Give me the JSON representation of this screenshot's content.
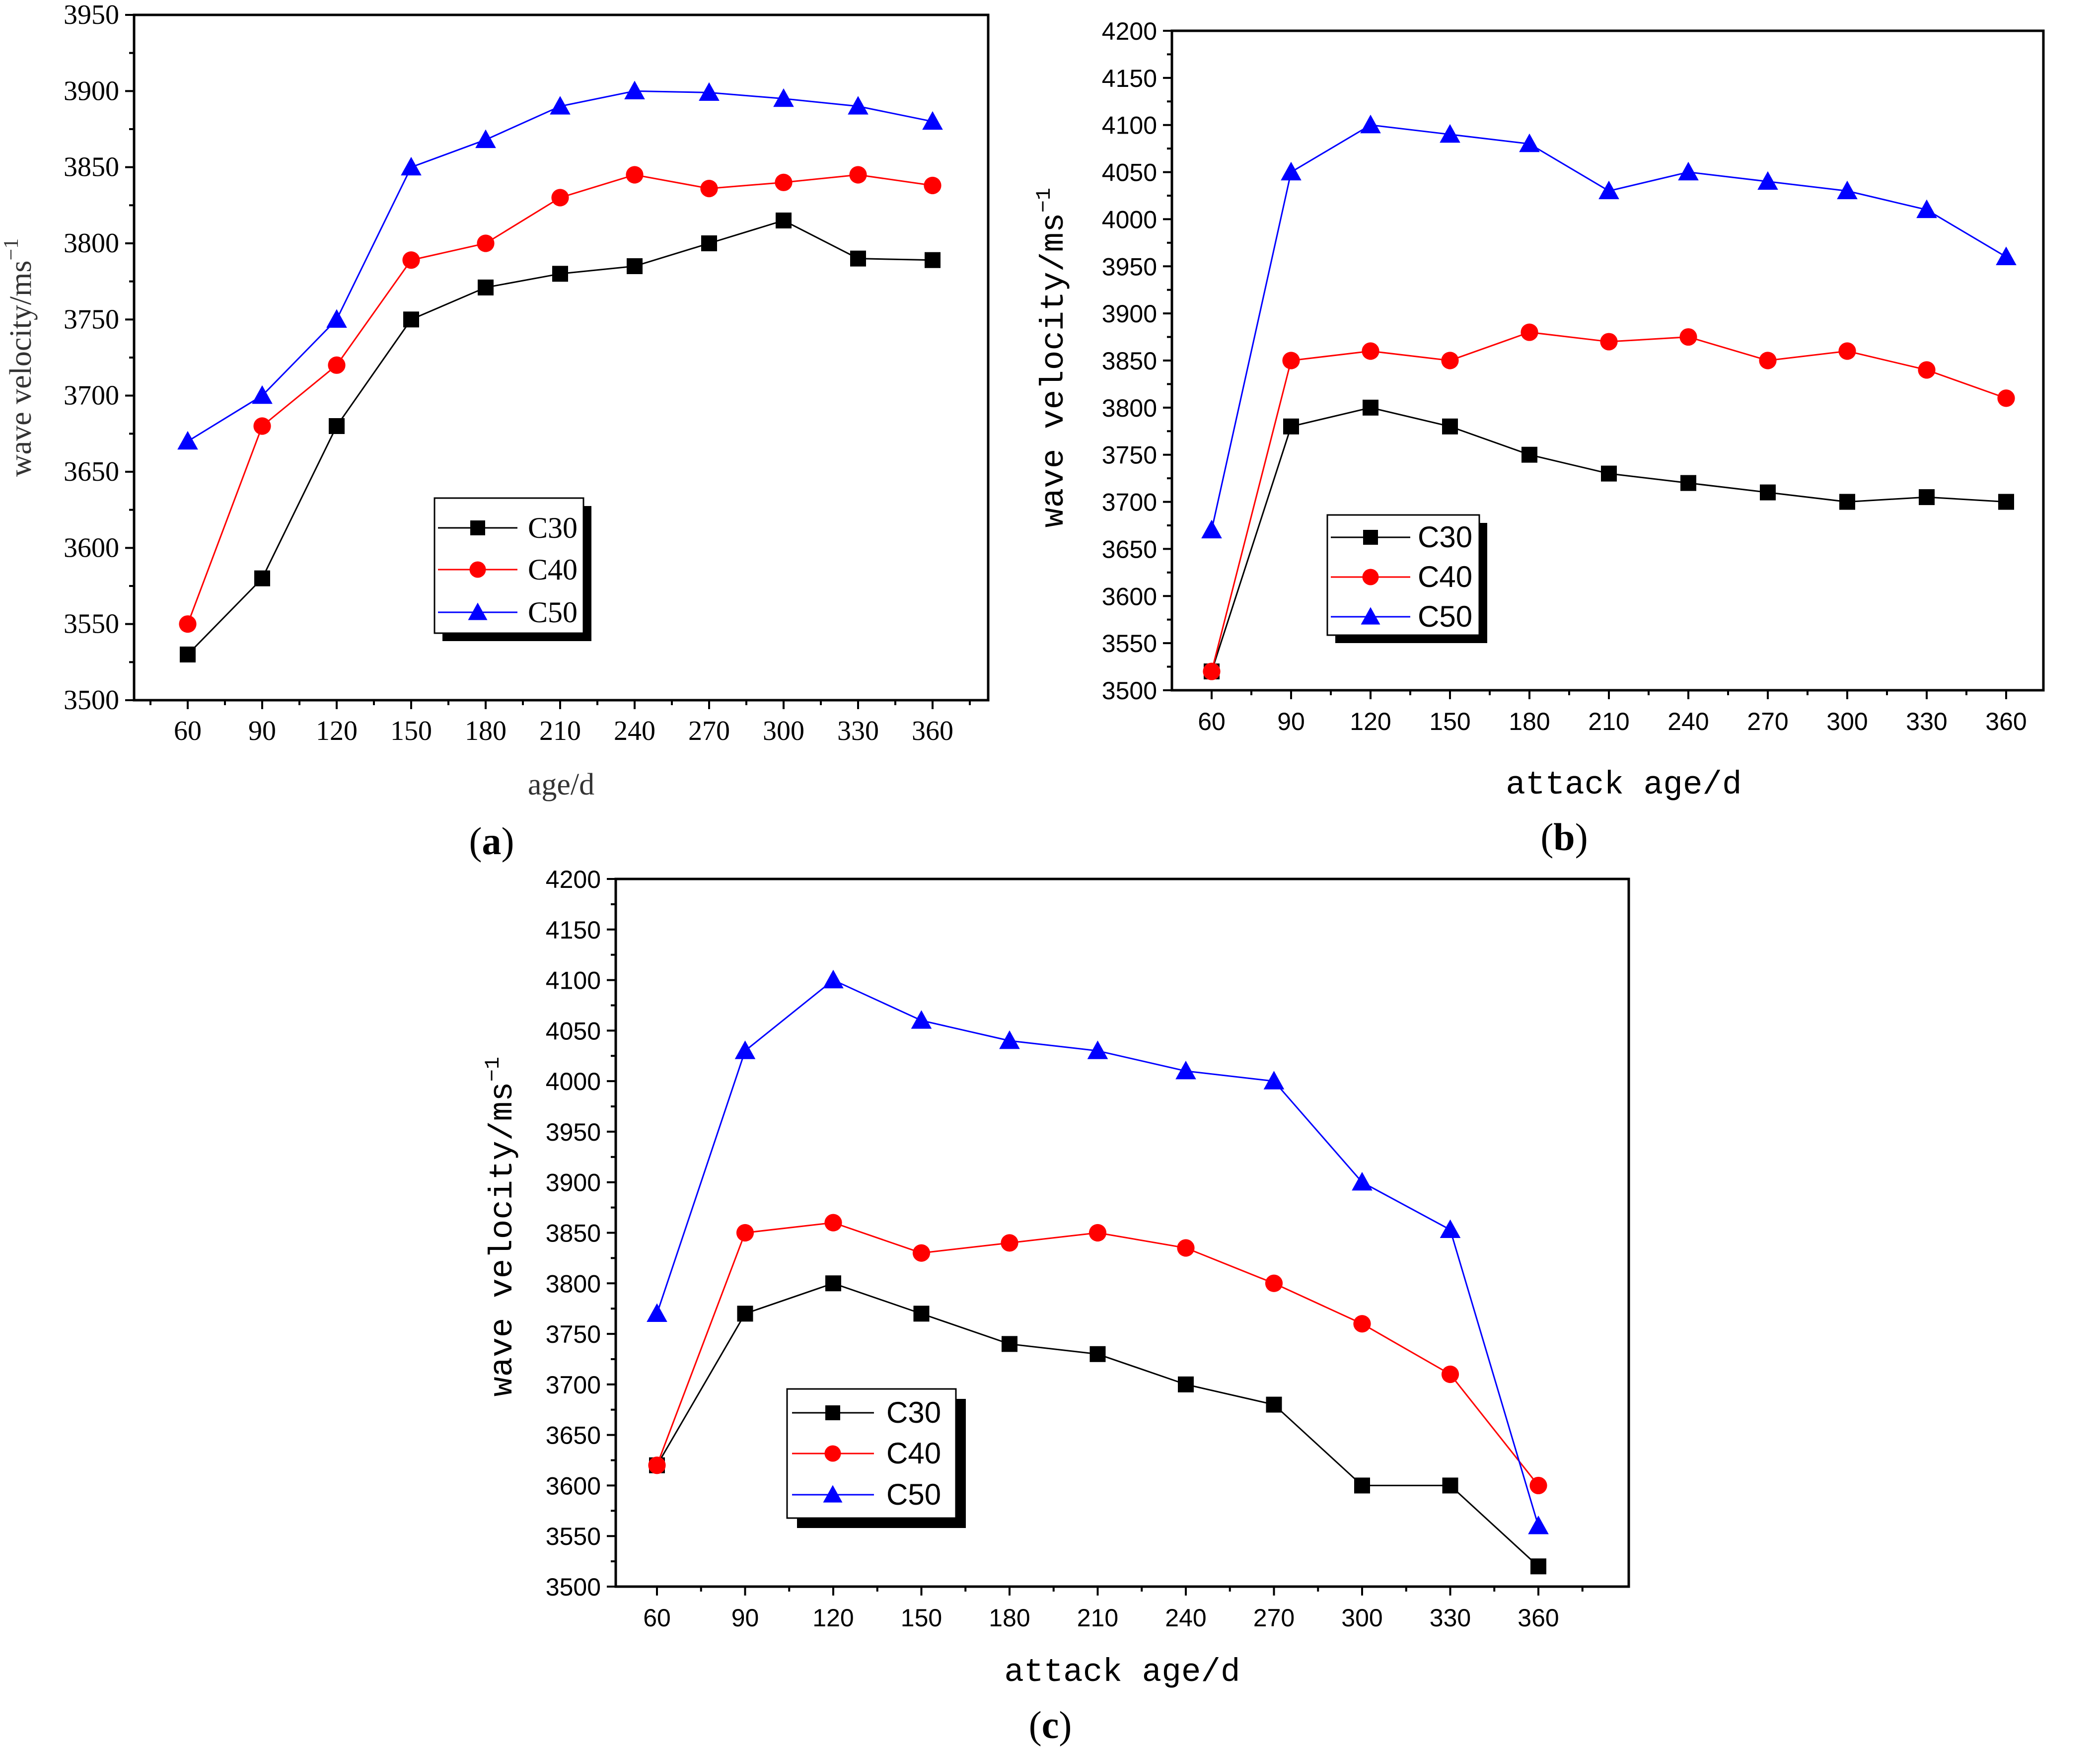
{
  "chart_data": [
    {
      "id": "a",
      "type": "line",
      "panel_label": "a",
      "xlabel": "age/d",
      "ylabel": "wave velocity/ms",
      "ylabel_superscript": "−1",
      "categories": [
        60,
        90,
        120,
        150,
        180,
        210,
        240,
        270,
        300,
        330,
        360
      ],
      "x_tick_labels": [
        "60",
        "90",
        "120",
        "150",
        "180",
        "210",
        "240",
        "270",
        "300",
        "330",
        "360"
      ],
      "ylim": [
        3500,
        3950
      ],
      "y_ticks": [
        "3500",
        "3550",
        "3600",
        "3650",
        "3700",
        "3750",
        "3800",
        "3850",
        "3900",
        "3950"
      ],
      "legend_position": "bottom-center",
      "series": [
        {
          "name": "C30",
          "color": "#000000",
          "marker": "square",
          "values": [
            3530,
            3580,
            3680,
            3750,
            3771,
            3780,
            3785,
            3800,
            3815,
            3790,
            3789
          ]
        },
        {
          "name": "C40",
          "color": "#ff0000",
          "marker": "circle",
          "values": [
            3550,
            3680,
            3720,
            3789,
            3800,
            3830,
            3845,
            3836,
            3840,
            3845,
            3838
          ]
        },
        {
          "name": "C50",
          "color": "#0000ff",
          "marker": "triangle",
          "values": [
            3670,
            3700,
            3750,
            3850,
            3868,
            3890,
            3900,
            3899,
            3895,
            3890,
            3880
          ]
        }
      ]
    },
    {
      "id": "b",
      "type": "line",
      "panel_label": "b",
      "xlabel": "attack age/d",
      "ylabel": "wave velocity/ms",
      "ylabel_superscript": "−1",
      "categories": [
        60,
        90,
        120,
        150,
        180,
        210,
        240,
        270,
        300,
        330,
        360
      ],
      "x_tick_labels": [
        "60",
        "90",
        "120",
        "150",
        "180",
        "210",
        "240",
        "270",
        "300",
        "330",
        "360"
      ],
      "ylim": [
        3500,
        4200
      ],
      "y_ticks": [
        "3500",
        "3550",
        "3600",
        "3650",
        "3700",
        "3750",
        "3800",
        "3850",
        "3900",
        "3950",
        "4000",
        "4050",
        "4100",
        "4150",
        "4200"
      ],
      "legend_position": "bottom-left",
      "series": [
        {
          "name": "C30",
          "color": "#000000",
          "marker": "square",
          "values": [
            3520,
            3780,
            3800,
            3780,
            3750,
            3730,
            3720,
            3710,
            3700,
            3705,
            3700
          ]
        },
        {
          "name": "C40",
          "color": "#ff0000",
          "marker": "circle",
          "values": [
            3520,
            3850,
            3860,
            3850,
            3880,
            3870,
            3875,
            3850,
            3860,
            3840,
            3810
          ]
        },
        {
          "name": "C50",
          "color": "#0000ff",
          "marker": "triangle",
          "values": [
            3670,
            4050,
            4100,
            4090,
            4080,
            4030,
            4050,
            4040,
            4030,
            4010,
            3960
          ]
        }
      ]
    },
    {
      "id": "c",
      "type": "line",
      "panel_label": "c",
      "xlabel": "attack age/d",
      "ylabel": "wave velocity/ms",
      "ylabel_superscript": "−1",
      "categories": [
        60,
        90,
        120,
        150,
        180,
        210,
        240,
        270,
        300,
        330,
        360
      ],
      "x_tick_labels": [
        "60",
        "90",
        "120",
        "150",
        "180",
        "210",
        "240",
        "270",
        "300",
        "330",
        "360"
      ],
      "ylim": [
        3500,
        4200
      ],
      "y_ticks": [
        "3500",
        "3550",
        "3600",
        "3650",
        "3700",
        "3750",
        "3800",
        "3850",
        "3900",
        "3950",
        "4000",
        "4050",
        "4100",
        "4150",
        "4200"
      ],
      "legend_position": "bottom-left",
      "series": [
        {
          "name": "C30",
          "color": "#000000",
          "marker": "square",
          "values": [
            3620,
            3770,
            3800,
            3770,
            3740,
            3730,
            3700,
            3680,
            3600,
            3600,
            3520
          ]
        },
        {
          "name": "C40",
          "color": "#ff0000",
          "marker": "circle",
          "values": [
            3620,
            3850,
            3860,
            3830,
            3840,
            3850,
            3835,
            3800,
            3760,
            3710,
            3600
          ]
        },
        {
          "name": "C50",
          "color": "#0000ff",
          "marker": "triangle",
          "values": [
            3770,
            4030,
            4100,
            4060,
            4040,
            4030,
            4010,
            4000,
            3900,
            3853,
            3560
          ]
        }
      ]
    }
  ]
}
